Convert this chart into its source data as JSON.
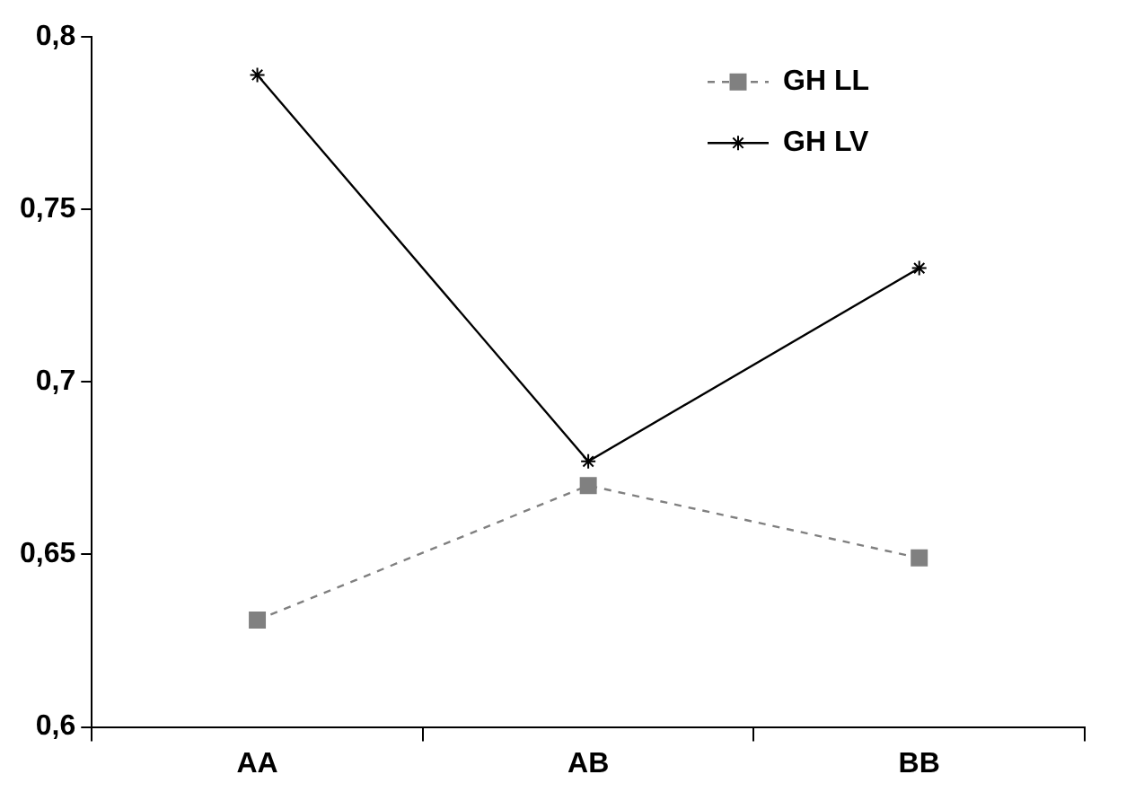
{
  "chart_data": {
    "type": "line",
    "categories": [
      "AA",
      "AB",
      "BB"
    ],
    "series": [
      {
        "name": "GH LL",
        "color": "#808080",
        "values": [
          0.631,
          0.67,
          0.649
        ],
        "marker": "square",
        "line_style": "dashed"
      },
      {
        "name": "GH LV",
        "color": "#000000",
        "values": [
          0.789,
          0.677,
          0.733
        ],
        "marker": "cross",
        "line_style": "solid"
      }
    ],
    "ylim": [
      0.6,
      0.8
    ],
    "yticks": [
      {
        "value": 0.6,
        "label": "0,6"
      },
      {
        "value": 0.65,
        "label": "0,65"
      },
      {
        "value": 0.7,
        "label": "0,7"
      },
      {
        "value": 0.75,
        "label": "0,75"
      },
      {
        "value": 0.8,
        "label": "0,8"
      }
    ],
    "grid": false,
    "legend": "top right"
  }
}
